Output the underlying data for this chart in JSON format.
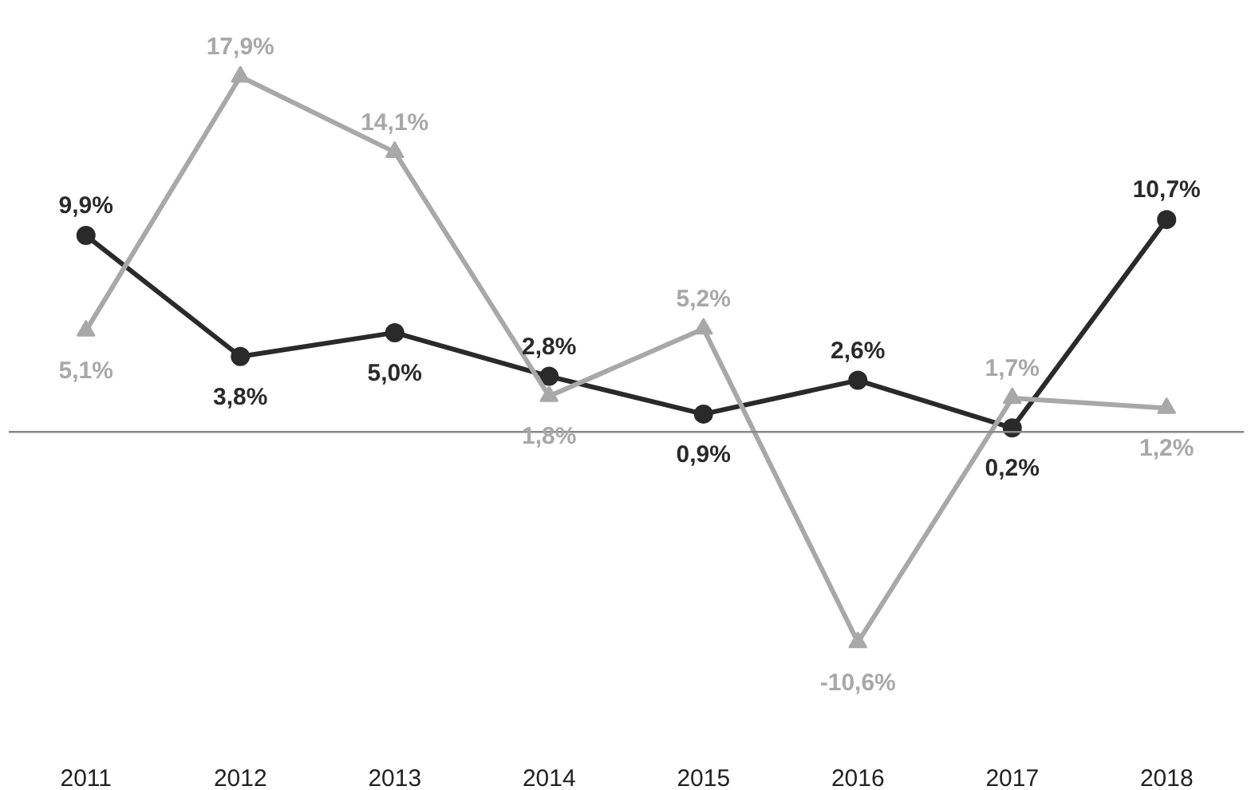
{
  "chart_data": {
    "type": "line",
    "categories": [
      "2011",
      "2012",
      "2013",
      "2014",
      "2015",
      "2016",
      "2017",
      "2018"
    ],
    "series": [
      {
        "color": "#2a2a2a",
        "marker": "circle",
        "values": [
          9.9,
          3.8,
          5.0,
          2.8,
          0.9,
          2.6,
          0.2,
          10.7
        ],
        "value_labels": [
          "9,9%",
          "3,8%",
          "5,0%",
          "2,8%",
          "0,9%",
          "2,6%",
          "0,2%",
          "10,7%"
        ]
      },
      {
        "color": "#a8a8a8",
        "marker": "triangle",
        "values": [
          5.1,
          17.9,
          14.1,
          1.8,
          5.2,
          -10.6,
          1.7,
          1.2
        ],
        "value_labels": [
          "5,1%",
          "17,9%",
          "14,1%",
          "1,8%",
          "5,2%",
          "-10,6%",
          "1,7%",
          "1,2%"
        ]
      }
    ],
    "ref_lines": [
      {
        "axis": "y",
        "value": 0,
        "color": "#888888"
      }
    ],
    "grid": false,
    "line_style": "solid"
  }
}
